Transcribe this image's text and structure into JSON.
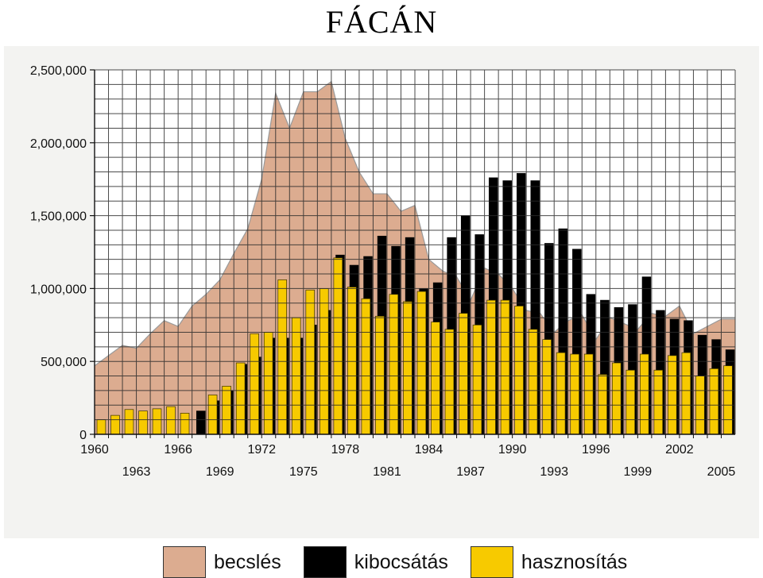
{
  "title": "FÁCÁN",
  "colors": {
    "becsles": "#dcac90",
    "kibocsatas": "#000000",
    "hasznositas": "#f7ca00"
  },
  "legend": [
    {
      "key": "becsles",
      "label": "becslés"
    },
    {
      "key": "kibocsatas",
      "label": "kibocsátás"
    },
    {
      "key": "hasznositas",
      "label": "hasznosítás"
    }
  ],
  "chart_data": {
    "type": "bar",
    "title": "FÁCÁN",
    "x": [
      1960,
      1961,
      1962,
      1963,
      1964,
      1965,
      1966,
      1967,
      1968,
      1969,
      1970,
      1971,
      1972,
      1973,
      1974,
      1975,
      1976,
      1977,
      1978,
      1979,
      1980,
      1981,
      1982,
      1983,
      1984,
      1985,
      1986,
      1987,
      1988,
      1989,
      1990,
      1991,
      1992,
      1993,
      1994,
      1995,
      1996,
      1997,
      1998,
      1999,
      2000,
      2001,
      2002,
      2003,
      2004,
      2005
    ],
    "xticks_row1": [
      1960,
      1966,
      1972,
      1978,
      1984,
      1990,
      1996,
      2002
    ],
    "xticks_row2": [
      1963,
      1969,
      1975,
      1981,
      1987,
      1993,
      1999,
      2005
    ],
    "xtick_labels_visible": [
      "1960",
      "1963",
      "1966",
      "1969",
      "1972",
      "1975",
      "1978",
      "1981",
      "1984",
      "1987",
      "1990",
      "1993",
      "1996",
      "1999",
      "2002",
      "2005"
    ],
    "yticks": [
      0,
      500000,
      1000000,
      1500000,
      2000000,
      2500000
    ],
    "ytick_labels": [
      "0",
      "500,000",
      "1,000,000",
      "1,500,000",
      "2,000,000",
      "2,500,000"
    ],
    "ylim": [
      0,
      2500000
    ],
    "grid": true,
    "series": [
      {
        "name": "becslés",
        "type": "area",
        "values": [
          470000,
          540000,
          610000,
          590000,
          690000,
          780000,
          740000,
          880000,
          960000,
          1060000,
          1240000,
          1410000,
          1750000,
          2340000,
          2100000,
          2350000,
          2350000,
          2420000,
          2030000,
          1800000,
          1650000,
          1650000,
          1530000,
          1570000,
          1200000,
          1120000,
          1080000,
          920000,
          1140000,
          1100000,
          1000000,
          850000,
          830000,
          700000,
          780000,
          820000,
          650000,
          800000,
          760000,
          720000,
          830000,
          810000,
          880000,
          690000,
          740000,
          790000
        ]
      },
      {
        "name": "kibocsátás",
        "type": "bar",
        "values": [
          null,
          null,
          null,
          null,
          null,
          null,
          null,
          160000,
          230000,
          300000,
          480000,
          530000,
          660000,
          660000,
          660000,
          750000,
          850000,
          1230000,
          1160000,
          1220000,
          1360000,
          1290000,
          1350000,
          1000000,
          1040000,
          1350000,
          1500000,
          1370000,
          1760000,
          1740000,
          1790000,
          1740000,
          1310000,
          1410000,
          1270000,
          960000,
          920000,
          870000,
          890000,
          1080000,
          850000,
          790000,
          780000,
          680000,
          650000,
          580000
        ]
      },
      {
        "name": "hasznosítás",
        "type": "bar",
        "values": [
          100000,
          130000,
          170000,
          160000,
          175000,
          190000,
          145000,
          null,
          270000,
          330000,
          490000,
          690000,
          700000,
          1060000,
          800000,
          990000,
          1000000,
          1210000,
          1010000,
          930000,
          810000,
          960000,
          910000,
          980000,
          770000,
          720000,
          830000,
          750000,
          920000,
          920000,
          880000,
          720000,
          650000,
          560000,
          550000,
          550000,
          410000,
          490000,
          440000,
          550000,
          440000,
          540000,
          560000,
          400000,
          450000,
          470000
        ]
      }
    ]
  }
}
